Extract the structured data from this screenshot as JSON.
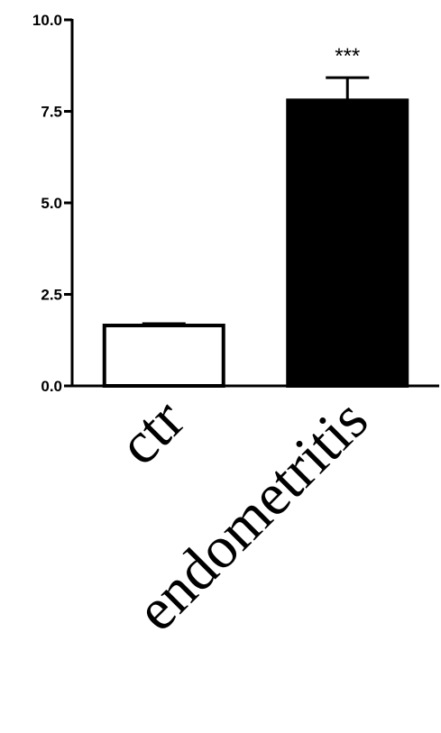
{
  "chart_data": {
    "type": "bar",
    "categories": [
      "ctr",
      "endometritis"
    ],
    "series": [
      {
        "values": [
          1.65,
          7.8
        ],
        "error": [
          0.05,
          0.62
        ],
        "fill": [
          "#ffffff",
          "#000000"
        ],
        "stroke": "#000000"
      }
    ],
    "yticks": [
      "0.0",
      "2.5",
      "5.0",
      "7.5",
      "10.0"
    ],
    "ytick_values": [
      0,
      2.5,
      5,
      7.5,
      10
    ],
    "ylim": [
      0,
      10
    ],
    "title": "",
    "xlabel": "",
    "ylabel": "",
    "grid": false,
    "annotations": [
      {
        "category": "endometritis",
        "text": "***"
      }
    ]
  }
}
